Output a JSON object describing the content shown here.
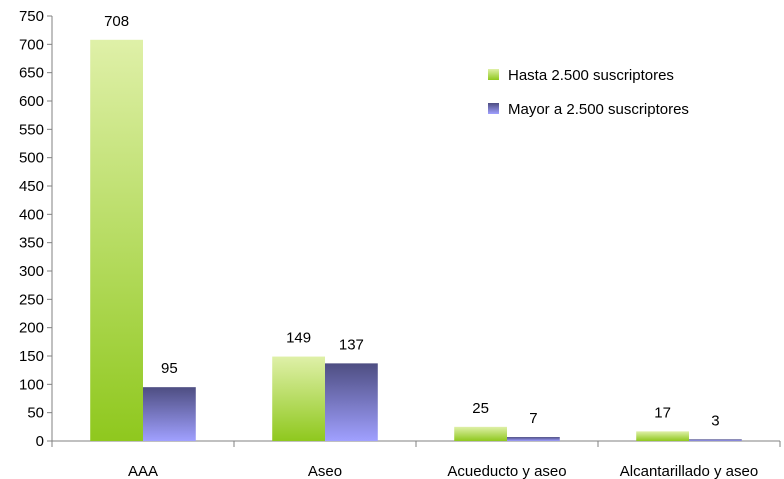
{
  "chart_data": {
    "type": "bar",
    "categories": [
      "AAA",
      "Aseo",
      "Acueducto y aseo",
      "Alcantarillado y aseo"
    ],
    "series": [
      {
        "name": "Hasta 2.500 suscriptores",
        "values": [
          708,
          149,
          25,
          17
        ],
        "color_top": "#dff0a8",
        "color_bottom": "#8fc81e"
      },
      {
        "name": "Mayor a 2.500 suscriptores",
        "values": [
          95,
          137,
          7,
          3
        ],
        "color_top": "#4e4e82",
        "color_bottom": "#a0a0ff"
      }
    ],
    "ylim": [
      0,
      750
    ],
    "yticks": [
      "0",
      "50",
      "100",
      "150",
      "200",
      "250",
      "300",
      "350",
      "400",
      "450",
      "500",
      "550",
      "600",
      "650",
      "700",
      "750"
    ],
    "legend_position": "top-right",
    "grid": false
  }
}
